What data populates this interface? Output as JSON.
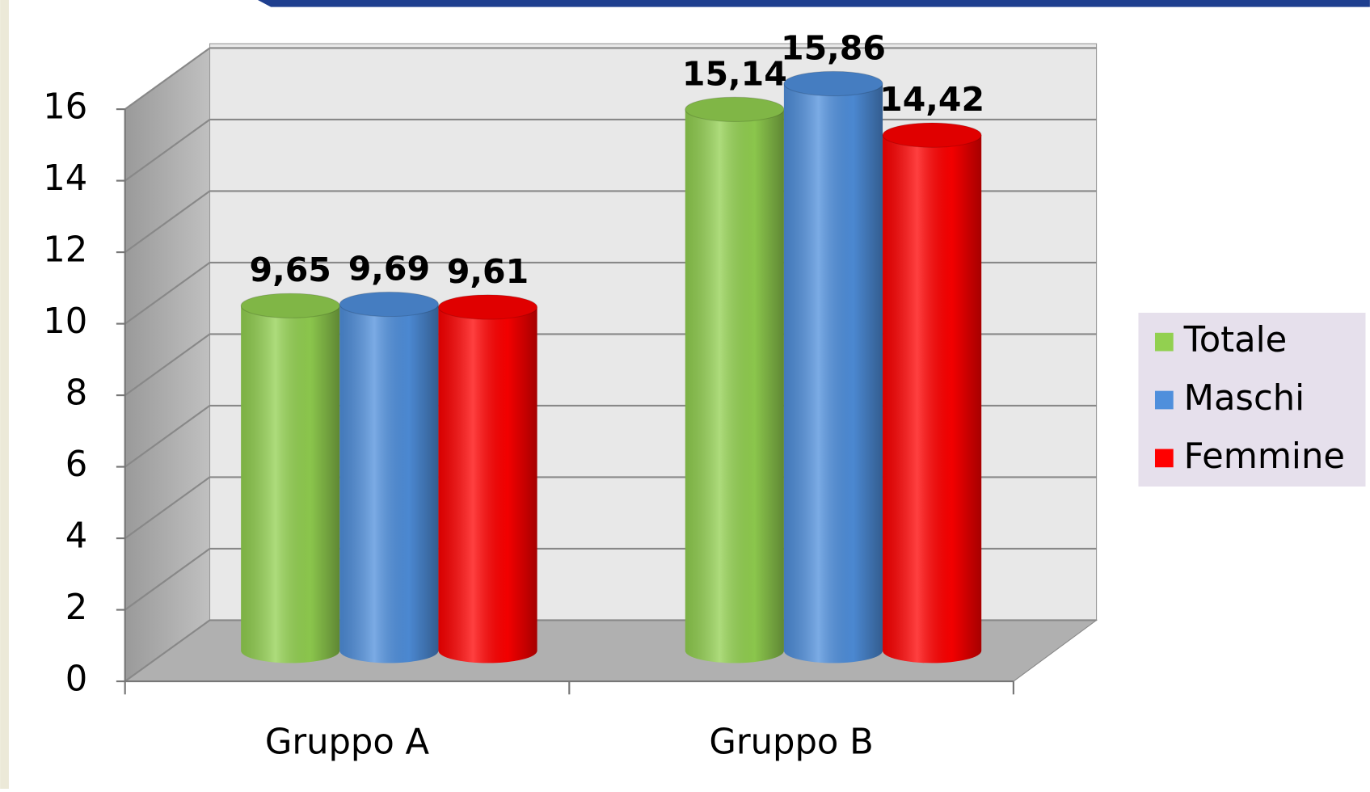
{
  "chart_data": {
    "type": "bar3d",
    "categories": [
      "Gruppo A",
      "Gruppo B"
    ],
    "series": [
      {
        "name": "Totale",
        "color": "#92d050",
        "values": [
          9.65,
          15.14
        ],
        "value_labels": [
          "9,65",
          "15,14"
        ]
      },
      {
        "name": "Maschi",
        "color": "#4f8fdc",
        "values": [
          9.69,
          15.86
        ],
        "value_labels": [
          "9,69",
          "15,86"
        ]
      },
      {
        "name": "Femmine",
        "color": "#ff0000",
        "values": [
          9.61,
          14.42
        ],
        "value_labels": [
          "9,61",
          "14,42"
        ]
      }
    ],
    "ylim": [
      0,
      16
    ],
    "yticks": [
      0,
      2,
      4,
      6,
      8,
      10,
      12,
      14,
      16
    ],
    "grid": true,
    "legend": "right"
  }
}
